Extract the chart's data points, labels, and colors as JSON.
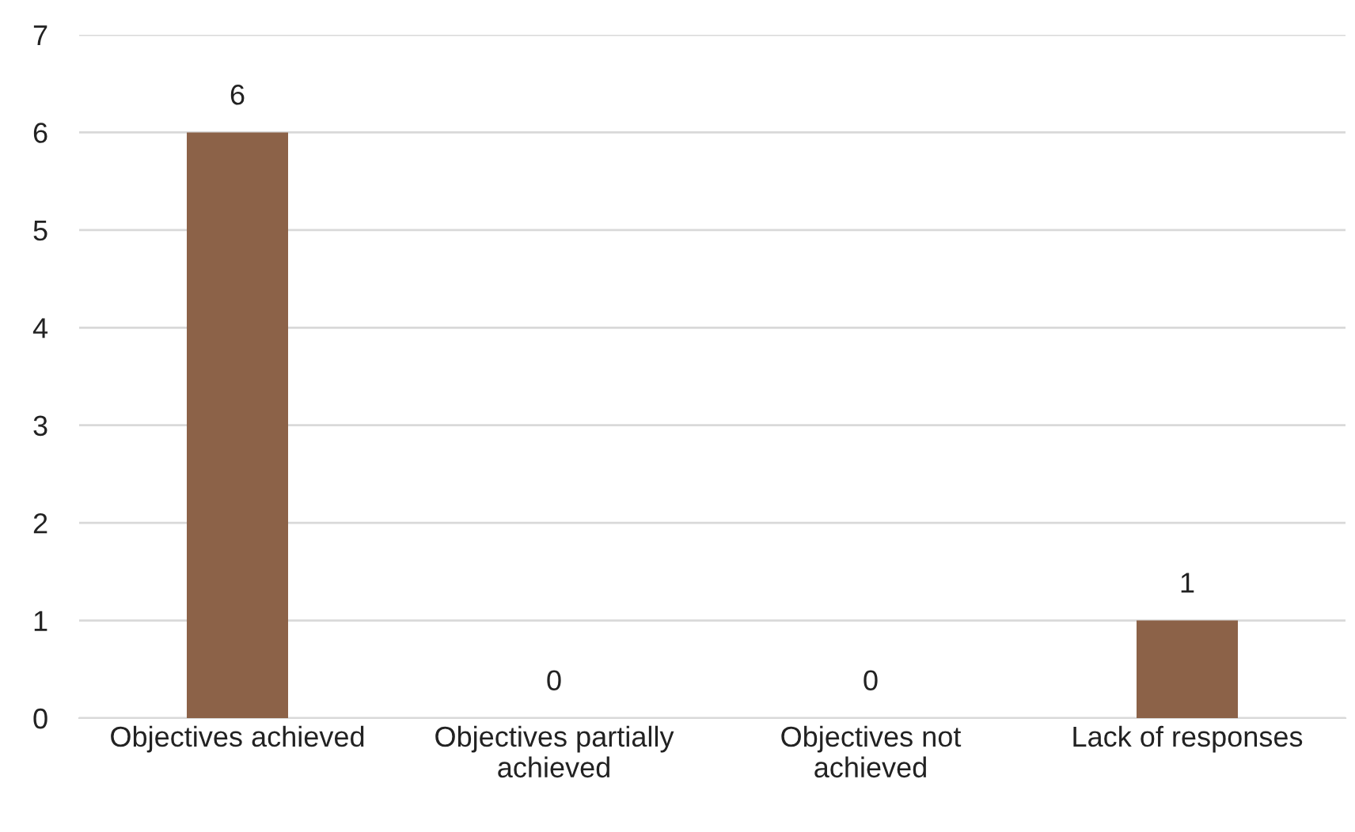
{
  "chart_data": {
    "type": "bar",
    "categories": [
      "Objectives achieved",
      "Objectives partially achieved",
      "Objectives not achieved",
      "Lack of responses"
    ],
    "values": [
      6,
      0,
      0,
      1
    ],
    "color": "#8c6248",
    "ylim": [
      0,
      7
    ],
    "yticks": [
      0,
      1,
      2,
      3,
      4,
      5,
      6,
      7
    ],
    "grid": "y",
    "data_labels": true
  }
}
